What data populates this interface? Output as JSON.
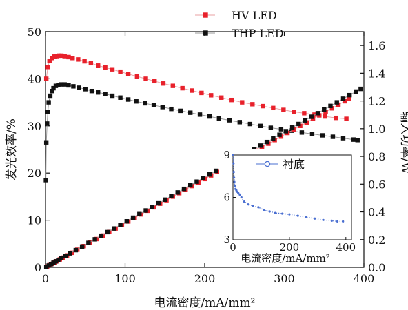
{
  "chart_data": [
    {
      "type": "scatter",
      "xlabel": "电流密度/mA/mm²",
      "ylabel": "发光效率/%",
      "y2label": "输入功率/W",
      "xlim": [
        0,
        400
      ],
      "ylim": [
        0,
        50
      ],
      "y2lim": [
        0,
        1.7
      ],
      "xticks": [
        "0",
        "100",
        "200",
        "300",
        "400"
      ],
      "yticks": [
        "0",
        "10",
        "20",
        "30",
        "40",
        "50"
      ],
      "y2ticks": [
        "0.0",
        "0.2",
        "0.4",
        "0.6",
        "0.8",
        "1.0",
        "1.2",
        "1.4",
        "1.6"
      ],
      "legend_position": "top-center",
      "grid": false,
      "series": [
        {
          "name": "HV LED",
          "axis": "left",
          "color": "#e8212b",
          "marker": "square",
          "points": [
            [
              1,
              40.0
            ],
            [
              3,
              42.5
            ],
            [
              5,
              43.8
            ],
            [
              8,
              44.4
            ],
            [
              11,
              44.7
            ],
            [
              14,
              44.8
            ],
            [
              17,
              44.9
            ],
            [
              20,
              44.9
            ],
            [
              24,
              44.8
            ],
            [
              29,
              44.6
            ],
            [
              34,
              44.4
            ],
            [
              41,
              44.1
            ],
            [
              49,
              43.7
            ],
            [
              57,
              43.3
            ],
            [
              66,
              42.8
            ],
            [
              75,
              42.4
            ],
            [
              84,
              42.0
            ],
            [
              94,
              41.5
            ],
            [
              104,
              41.0
            ],
            [
              115,
              40.5
            ],
            [
              126,
              40.0
            ],
            [
              137,
              39.5
            ],
            [
              148,
              39.0
            ],
            [
              160,
              38.5
            ],
            [
              172,
              38.0
            ],
            [
              184,
              37.5
            ],
            [
              196,
              37.0
            ],
            [
              208,
              36.5
            ],
            [
              221,
              36.0
            ],
            [
              234,
              35.5
            ],
            [
              247,
              35.0
            ],
            [
              260,
              34.6
            ],
            [
              273,
              34.2
            ],
            [
              286,
              33.8
            ],
            [
              299,
              33.4
            ],
            [
              312,
              33.0
            ],
            [
              325,
              32.7
            ],
            [
              338,
              32.4
            ],
            [
              351,
              32.0
            ],
            [
              365,
              31.7
            ],
            [
              378,
              31.5
            ]
          ]
        },
        {
          "name": "THP LED",
          "axis": "left",
          "color": "#111111",
          "marker": "square",
          "points": [
            [
              0.5,
              18.5
            ],
            [
              1,
              26.5
            ],
            [
              2,
              30.5
            ],
            [
              3,
              33.0
            ],
            [
              4,
              35.0
            ],
            [
              6,
              36.4
            ],
            [
              8,
              37.4
            ],
            [
              10,
              38.0
            ],
            [
              13,
              38.5
            ],
            [
              16,
              38.7
            ],
            [
              20,
              38.8
            ],
            [
              24,
              38.8
            ],
            [
              29,
              38.6
            ],
            [
              35,
              38.4
            ],
            [
              42,
              38.1
            ],
            [
              50,
              37.8
            ],
            [
              58,
              37.4
            ],
            [
              66,
              37.1
            ],
            [
              75,
              36.8
            ],
            [
              84,
              36.4
            ],
            [
              94,
              36.0
            ],
            [
              104,
              35.6
            ],
            [
              114,
              35.2
            ],
            [
              125,
              34.8
            ],
            [
              136,
              34.4
            ],
            [
              147,
              34.0
            ],
            [
              158,
              33.6
            ],
            [
              170,
              33.2
            ],
            [
              182,
              32.8
            ],
            [
              194,
              32.4
            ],
            [
              206,
              32.0
            ],
            [
              218,
              31.6
            ],
            [
              231,
              31.2
            ],
            [
              244,
              30.8
            ],
            [
              257,
              30.4
            ],
            [
              270,
              30.0
            ],
            [
              283,
              29.6
            ],
            [
              296,
              29.3
            ],
            [
              309,
              29.0
            ],
            [
              322,
              28.6
            ],
            [
              335,
              28.3
            ],
            [
              348,
              28.0
            ],
            [
              361,
              27.7
            ],
            [
              374,
              27.4
            ],
            [
              387,
              27.1
            ],
            [
              392,
              27.0
            ]
          ]
        },
        {
          "name": "HV LED",
          "axis": "right",
          "color": "#e8212b",
          "marker": "square",
          "points": [
            [
              2,
              0.006
            ],
            [
              5,
              0.016
            ],
            [
              8,
              0.025
            ],
            [
              11,
              0.035
            ],
            [
              14,
              0.044
            ],
            [
              18,
              0.057
            ],
            [
              22,
              0.07
            ],
            [
              27,
              0.086
            ],
            [
              33,
              0.105
            ],
            [
              40,
              0.127
            ],
            [
              48,
              0.153
            ],
            [
              56,
              0.178
            ],
            [
              64,
              0.204
            ],
            [
              72,
              0.229
            ],
            [
              80,
              0.255
            ],
            [
              88,
              0.28
            ],
            [
              96,
              0.306
            ],
            [
              104,
              0.331
            ],
            [
              112,
              0.357
            ],
            [
              120,
              0.382
            ],
            [
              128,
              0.408
            ],
            [
              136,
              0.433
            ],
            [
              144,
              0.459
            ],
            [
              152,
              0.484
            ],
            [
              160,
              0.51
            ],
            [
              168,
              0.535
            ],
            [
              176,
              0.561
            ],
            [
              184,
              0.586
            ],
            [
              192,
              0.612
            ],
            [
              200,
              0.637
            ],
            [
              208,
              0.663
            ],
            [
              216,
              0.688
            ],
            [
              224,
              0.714
            ],
            [
              232,
              0.739
            ],
            [
              240,
              0.765
            ],
            [
              248,
              0.79
            ],
            [
              256,
              0.816
            ],
            [
              264,
              0.841
            ],
            [
              272,
              0.867
            ],
            [
              280,
              0.892
            ],
            [
              288,
              0.918
            ],
            [
              296,
              0.943
            ],
            [
              304,
              0.969
            ],
            [
              312,
              0.994
            ],
            [
              320,
              1.02
            ],
            [
              328,
              1.045
            ],
            [
              336,
              1.071
            ],
            [
              344,
              1.096
            ],
            [
              352,
              1.122
            ],
            [
              360,
              1.147
            ],
            [
              368,
              1.173
            ],
            [
              376,
              1.198
            ],
            [
              381,
              1.214
            ]
          ]
        },
        {
          "name": "THP LED",
          "axis": "right",
          "color": "#111111",
          "marker": "square",
          "points": [
            [
              1,
              0.003
            ],
            [
              4,
              0.013
            ],
            [
              7,
              0.023
            ],
            [
              10,
              0.033
            ],
            [
              13,
              0.043
            ],
            [
              16,
              0.053
            ],
            [
              20,
              0.066
            ],
            [
              25,
              0.082
            ],
            [
              31,
              0.101
            ],
            [
              38,
              0.124
            ],
            [
              46,
              0.15
            ],
            [
              54,
              0.176
            ],
            [
              62,
              0.202
            ],
            [
              70,
              0.228
            ],
            [
              78,
              0.254
            ],
            [
              86,
              0.28
            ],
            [
              94,
              0.306
            ],
            [
              102,
              0.332
            ],
            [
              110,
              0.358
            ],
            [
              118,
              0.384
            ],
            [
              126,
              0.41
            ],
            [
              134,
              0.436
            ],
            [
              142,
              0.462
            ],
            [
              150,
              0.488
            ],
            [
              158,
              0.514
            ],
            [
              166,
              0.54
            ],
            [
              174,
              0.566
            ],
            [
              182,
              0.592
            ],
            [
              190,
              0.618
            ],
            [
              198,
              0.644
            ],
            [
              206,
              0.67
            ],
            [
              214,
              0.696
            ],
            [
              222,
              0.722
            ],
            [
              230,
              0.748
            ],
            [
              238,
              0.774
            ],
            [
              246,
              0.8
            ],
            [
              254,
              0.826
            ],
            [
              262,
              0.852
            ],
            [
              270,
              0.878
            ],
            [
              278,
              0.904
            ],
            [
              286,
              0.93
            ],
            [
              294,
              0.956
            ],
            [
              302,
              0.982
            ],
            [
              310,
              1.008
            ],
            [
              318,
              1.034
            ],
            [
              326,
              1.06
            ],
            [
              334,
              1.086
            ],
            [
              342,
              1.112
            ],
            [
              350,
              1.138
            ],
            [
              358,
              1.164
            ],
            [
              366,
              1.19
            ],
            [
              374,
              1.216
            ],
            [
              382,
              1.242
            ],
            [
              390,
              1.268
            ],
            [
              396,
              1.287
            ]
          ]
        }
      ]
    },
    {
      "type": "line",
      "xlabel": "电流密度/mA/mm²",
      "ylabel": "",
      "xlim": [
        0,
        420
      ],
      "ylim": [
        3,
        9
      ],
      "xticks": [
        "0",
        "200",
        "400"
      ],
      "yticks": [
        "3",
        "6",
        "9"
      ],
      "legend_position": "top-right",
      "grid": false,
      "series": [
        {
          "name": "衬底",
          "color": "#4a6fd1",
          "marker": "circle-open",
          "points": [
            [
              1,
              9.0
            ],
            [
              2,
              8.4
            ],
            [
              3,
              7.8
            ],
            [
              4,
              7.4
            ],
            [
              5,
              7.1
            ],
            [
              7,
              6.8
            ],
            [
              9,
              6.6
            ],
            [
              12,
              6.5
            ],
            [
              15,
              6.4
            ],
            [
              19,
              6.3
            ],
            [
              24,
              6.2
            ],
            [
              30,
              6.0
            ],
            [
              40,
              5.7
            ],
            [
              55,
              5.5
            ],
            [
              70,
              5.4
            ],
            [
              90,
              5.3
            ],
            [
              110,
              5.1
            ],
            [
              130,
              5.0
            ],
            [
              150,
              4.9
            ],
            [
              175,
              4.85
            ],
            [
              200,
              4.8
            ],
            [
              230,
              4.7
            ],
            [
              260,
              4.6
            ],
            [
              290,
              4.5
            ],
            [
              320,
              4.4
            ],
            [
              350,
              4.35
            ],
            [
              370,
              4.3
            ],
            [
              390,
              4.3
            ]
          ]
        }
      ]
    }
  ]
}
